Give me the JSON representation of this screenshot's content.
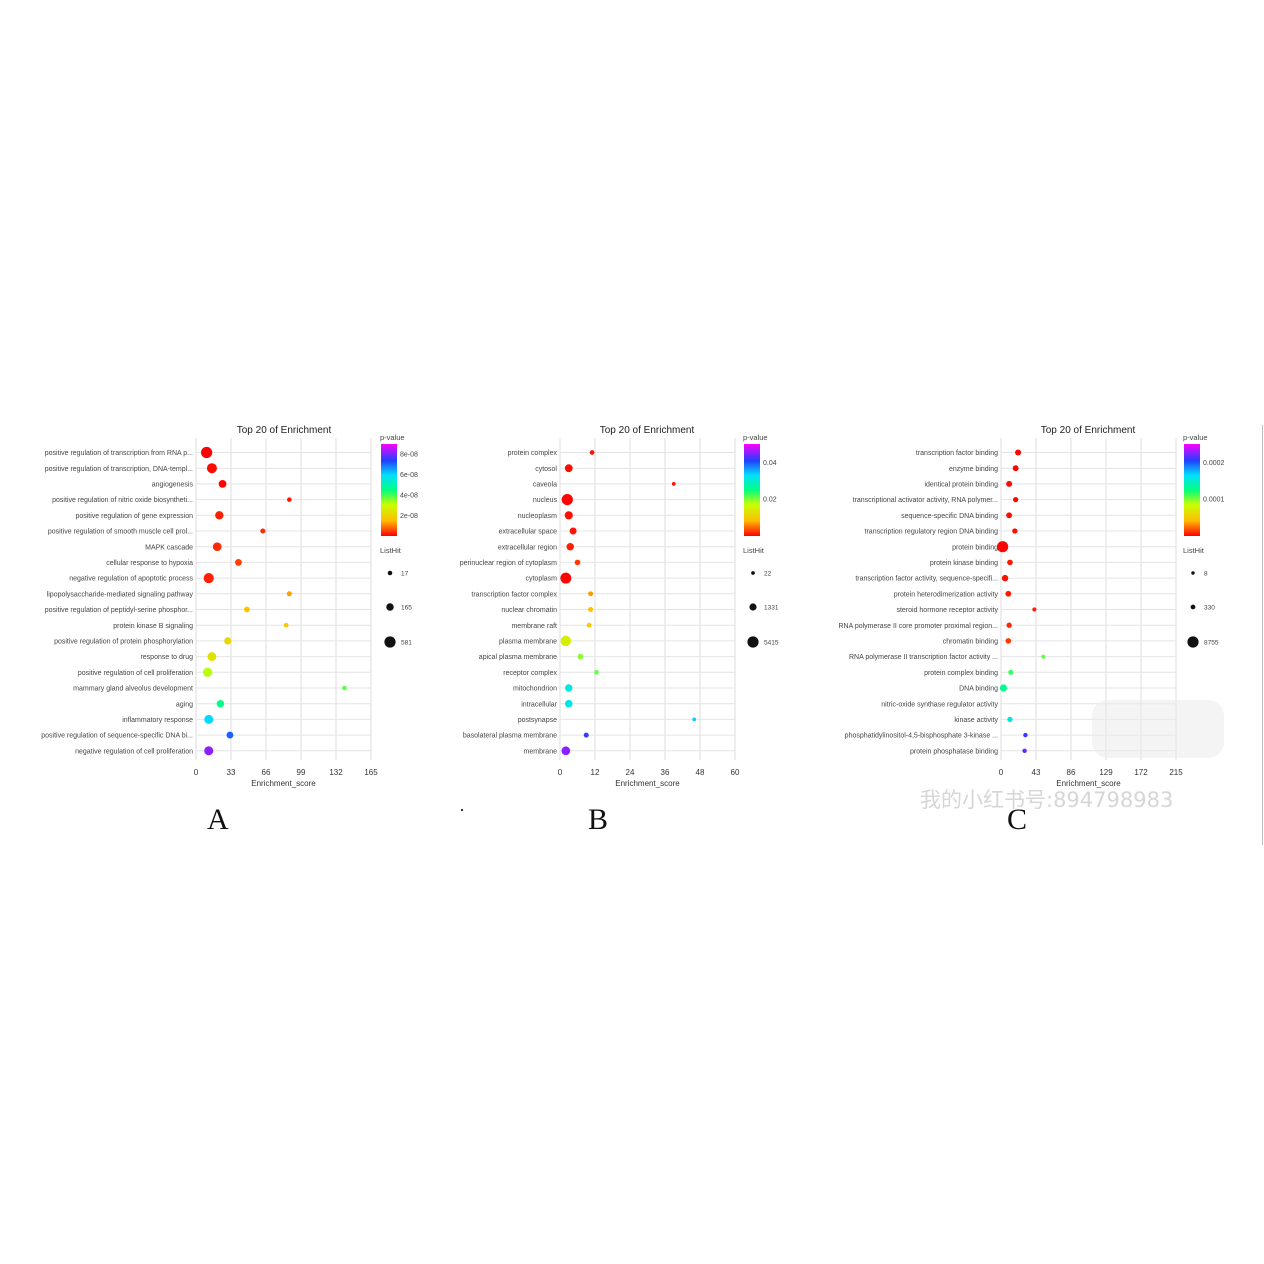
{
  "figure": {
    "panel_labels": [
      "A",
      "B",
      "C"
    ],
    "watermark": {
      "text": "我的小红书号:894798983"
    }
  },
  "chart_data": [
    {
      "type": "scatter",
      "title": "Top 20 of  Enrichment",
      "xlabel": "Enrichment_score",
      "xticks": [
        0,
        33,
        66,
        99,
        132,
        165
      ],
      "xlim": [
        0,
        165
      ],
      "grid": true,
      "color_legend": {
        "title": "p-value",
        "ticks": [
          "8e-08",
          "6e-08",
          "4e-08",
          "2e-08"
        ],
        "range": [
          0,
          9e-08
        ]
      },
      "size_legend": {
        "title": "ListHit",
        "ticks": [
          17,
          165,
          581
        ]
      },
      "terms": [
        "positive regulation of transcription from RNA p...",
        "positive regulation of transcription, DNA-templ...",
        "angiogenesis",
        "positive regulation of nitric oxide biosyntheti...",
        "positive regulation of gene expression",
        "positive regulation of smooth muscle cell prol...",
        "MAPK cascade",
        "cellular response to hypoxia",
        "negative regulation of apoptotic process",
        "lipopolysaccharide-mediated signaling pathway",
        "positive regulation of peptidyl-serine phosphor...",
        "protein kinase B signaling",
        "positive regulation of protein phosphorylation",
        "response to drug",
        "positive regulation of cell proliferation",
        "mammary gland alveolus development",
        "aging",
        "inflammatory response",
        "positive regulation of sequence-specific DNA bi...",
        "negative regulation of cell proliferation"
      ],
      "points": [
        {
          "x": 10,
          "p": 1e-10,
          "hit": 581
        },
        {
          "x": 15,
          "p": 1e-09,
          "hit": 420
        },
        {
          "x": 25,
          "p": 5e-10,
          "hit": 190
        },
        {
          "x": 88,
          "p": 2e-09,
          "hit": 17
        },
        {
          "x": 22,
          "p": 3e-09,
          "hit": 250
        },
        {
          "x": 63,
          "p": 4e-09,
          "hit": 30
        },
        {
          "x": 20,
          "p": 4e-09,
          "hit": 270
        },
        {
          "x": 40,
          "p": 6e-09,
          "hit": 120
        },
        {
          "x": 12,
          "p": 3e-09,
          "hit": 440
        },
        {
          "x": 88,
          "p": 1.5e-08,
          "hit": 30
        },
        {
          "x": 48,
          "p": 1.6e-08,
          "hit": 60
        },
        {
          "x": 85,
          "p": 1.8e-08,
          "hit": 20
        },
        {
          "x": 30,
          "p": 2.2e-08,
          "hit": 150
        },
        {
          "x": 15,
          "p": 2.5e-08,
          "hit": 290
        },
        {
          "x": 11,
          "p": 3.2e-08,
          "hit": 350
        },
        {
          "x": 140,
          "p": 4e-08,
          "hit": 17
        },
        {
          "x": 23,
          "p": 4.6e-08,
          "hit": 160
        },
        {
          "x": 12,
          "p": 6e-08,
          "hit": 300
        },
        {
          "x": 32,
          "p": 7.3e-08,
          "hit": 120
        },
        {
          "x": 12,
          "p": 8.3e-08,
          "hit": 320
        }
      ]
    },
    {
      "type": "scatter",
      "title": "Top 20 of  Enrichment",
      "xlabel": "Enrichment_score",
      "xticks": [
        0,
        12,
        24,
        36,
        48,
        60
      ],
      "xlim": [
        0,
        60
      ],
      "grid": true,
      "color_legend": {
        "title": "p-value",
        "ticks": [
          "0.04",
          "0.02"
        ],
        "range": [
          0,
          0.05
        ]
      },
      "size_legend": {
        "title": "ListHit",
        "ticks": [
          22,
          1331,
          5415
        ]
      },
      "terms": [
        "protein complex",
        "cytosol",
        "caveola",
        "nucleus",
        "nucleoplasm",
        "extracellular space",
        "extracellular region",
        "perinuclear region of cytoplasm",
        "cytoplasm",
        "transcription factor complex",
        "nuclear chromatin",
        "membrane raft",
        "plasma membrane",
        "apical plasma membrane",
        "receptor complex",
        "mitochondrion",
        "intracellular",
        "postsynapse",
        "basolateral plasma membrane",
        "membrane"
      ],
      "points": [
        {
          "x": 11,
          "p": 0.001,
          "hit": 180
        },
        {
          "x": 3,
          "p": 0.0005,
          "hit": 1800
        },
        {
          "x": 39,
          "p": 0.001,
          "hit": 22
        },
        {
          "x": 2.5,
          "p": 0.0002,
          "hit": 5415
        },
        {
          "x": 3,
          "p": 0.0008,
          "hit": 2100
        },
        {
          "x": 4.5,
          "p": 0.001,
          "hit": 1200
        },
        {
          "x": 3.5,
          "p": 0.0015,
          "hit": 1500
        },
        {
          "x": 6,
          "p": 0.003,
          "hit": 500
        },
        {
          "x": 2,
          "p": 0.0002,
          "hit": 5000
        },
        {
          "x": 10.5,
          "p": 0.008,
          "hit": 250
        },
        {
          "x": 10.5,
          "p": 0.009,
          "hit": 300
        },
        {
          "x": 10,
          "p": 0.01,
          "hit": 220
        },
        {
          "x": 2,
          "p": 0.016,
          "hit": 4500
        },
        {
          "x": 7,
          "p": 0.02,
          "hit": 500
        },
        {
          "x": 12.5,
          "p": 0.022,
          "hit": 180
        },
        {
          "x": 3,
          "p": 0.032,
          "hit": 1500
        },
        {
          "x": 3,
          "p": 0.033,
          "hit": 1700
        },
        {
          "x": 46,
          "p": 0.034,
          "hit": 22
        },
        {
          "x": 9,
          "p": 0.042,
          "hit": 260
        },
        {
          "x": 2,
          "p": 0.046,
          "hit": 2600
        }
      ]
    },
    {
      "type": "scatter",
      "title": "Top 20 of  Enrichment",
      "xlabel": "Enrichment_score",
      "xticks": [
        0,
        43,
        86,
        129,
        172,
        215
      ],
      "xlim": [
        0,
        215
      ],
      "grid": true,
      "color_legend": {
        "title": "p-value",
        "ticks": [
          "0.0002",
          "0.0001"
        ],
        "range": [
          0,
          0.00025
        ]
      },
      "size_legend": {
        "title": "ListHit",
        "ticks": [
          8,
          330,
          8755
        ]
      },
      "terms": [
        "transcription factor binding",
        "enzyme binding",
        "identical protein binding",
        "transcriptional activator activity, RNA polymer...",
        "sequence-specific DNA binding",
        "transcription regulatory region DNA binding",
        "protein binding",
        "protein kinase binding",
        "transcription factor activity, sequence-specifi...",
        "protein heterodimerization activity",
        "steroid hormone receptor activity",
        "RNA polymerase II core promoter proximal region...",
        "chromatin binding",
        "RNA polymerase II transcription factor activity ...",
        "protein complex binding",
        "DNA binding",
        "nitric-oxide synthase regulator activity",
        "kinase activity",
        "phosphatidylinositol-4,5-bisphosphate 3-kinase ...",
        "protein phosphatase binding"
      ],
      "points": [
        {
          "x": 21,
          "p": 2e-06,
          "hit": 1100
        },
        {
          "x": 18,
          "p": 2e-06,
          "hit": 1000
        },
        {
          "x": 10,
          "p": 3e-06,
          "hit": 1100
        },
        {
          "x": 18,
          "p": 2e-06,
          "hit": 600
        },
        {
          "x": 10,
          "p": 3e-06,
          "hit": 1000
        },
        {
          "x": 17,
          "p": 3e-06,
          "hit": 600
        },
        {
          "x": 2,
          "p": 1e-06,
          "hit": 8755
        },
        {
          "x": 11,
          "p": 6e-06,
          "hit": 800
        },
        {
          "x": 5,
          "p": 4e-06,
          "hit": 1400
        },
        {
          "x": 9,
          "p": 6e-06,
          "hit": 900
        },
        {
          "x": 41,
          "p": 8e-06,
          "hit": 120
        },
        {
          "x": 10,
          "p": 1e-05,
          "hit": 600
        },
        {
          "x": 9,
          "p": 1.5e-05,
          "hit": 800
        },
        {
          "x": 52,
          "p": 0.00011,
          "hit": 100
        },
        {
          "x": 12,
          "p": 0.00012,
          "hit": 500
        },
        {
          "x": 3,
          "p": 0.00013,
          "hit": 2200
        },
        {
          "x": null,
          "p": null,
          "hit": null
        },
        {
          "x": 11,
          "p": 0.00016,
          "hit": 600
        },
        {
          "x": 30,
          "p": 0.00021,
          "hit": 200
        },
        {
          "x": 29,
          "p": 0.00022,
          "hit": 220
        }
      ]
    }
  ]
}
